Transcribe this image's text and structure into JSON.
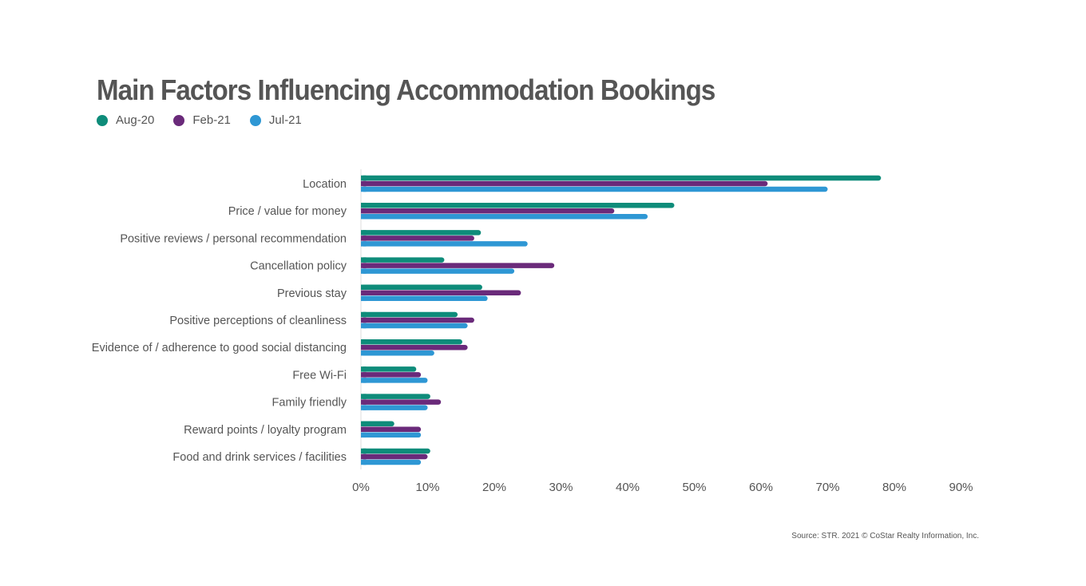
{
  "title": "Main Factors Influencing Accommodation Bookings",
  "source": "Source: STR. 2021 © CoStar Realty Information, Inc.",
  "colors": {
    "Aug-20": "#0e8c7a",
    "Feb-21": "#6a2a7a",
    "Jul-21": "#2e97d4"
  },
  "chart_data": {
    "type": "bar",
    "orientation": "horizontal",
    "categories": [
      "Location",
      "Price / value for money",
      "Positive reviews / personal recommendation",
      "Cancellation policy",
      "Previous stay",
      "Positive perceptions of cleanliness",
      "Evidence of / adherence to good social distancing",
      "Free Wi-Fi",
      "Family friendly",
      "Reward points / loyalty program",
      "Food and drink services / facilities"
    ],
    "series": [
      {
        "name": "Aug-20",
        "values": [
          78,
          47,
          18,
          12.5,
          18.2,
          14.5,
          15.2,
          8.3,
          10.4,
          5,
          10.4
        ]
      },
      {
        "name": "Feb-21",
        "values": [
          61,
          38,
          17,
          29,
          24,
          17,
          16,
          9,
          12,
          9,
          10
        ]
      },
      {
        "name": "Jul-21",
        "values": [
          70,
          43,
          25,
          23,
          19,
          16,
          11,
          10,
          10,
          9,
          9
        ]
      }
    ],
    "xticks": [
      "0%",
      "10%",
      "20%",
      "30%",
      "40%",
      "50%",
      "60%",
      "70%",
      "80%",
      "90%"
    ],
    "xlim": [
      0,
      90
    ],
    "grid": false,
    "legend": "top-left"
  }
}
